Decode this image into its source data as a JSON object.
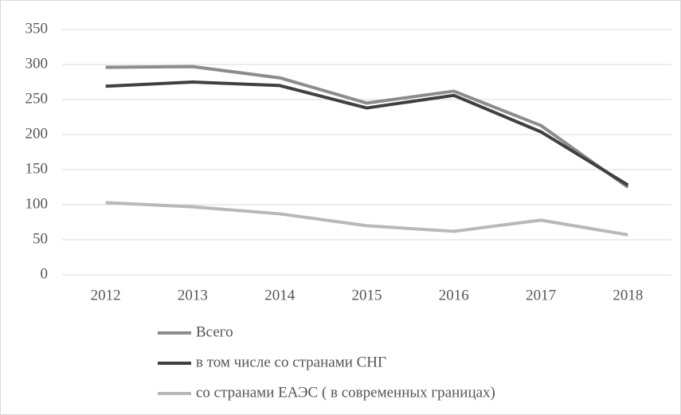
{
  "chart_data": {
    "type": "line",
    "categories": [
      "2012",
      "2013",
      "2014",
      "2015",
      "2016",
      "2017",
      "2018"
    ],
    "series": [
      {
        "name": "Всего",
        "color": "#8c8c8c",
        "values": [
          296,
          297,
          281,
          245,
          262,
          213,
          125
        ]
      },
      {
        "name": "в том числе со странами СНГ",
        "color": "#404040",
        "values": [
          269,
          275,
          270,
          238,
          256,
          204,
          128
        ]
      },
      {
        "name": "со странами ЕАЭС ( в современных границах)",
        "color": "#b8b8b8",
        "values": [
          103,
          97,
          87,
          70,
          62,
          78,
          57
        ]
      }
    ],
    "ylim": [
      0,
      350
    ],
    "yticks": [
      0,
      50,
      100,
      150,
      200,
      250,
      300,
      350
    ],
    "grid": true,
    "legend": "bottom"
  }
}
